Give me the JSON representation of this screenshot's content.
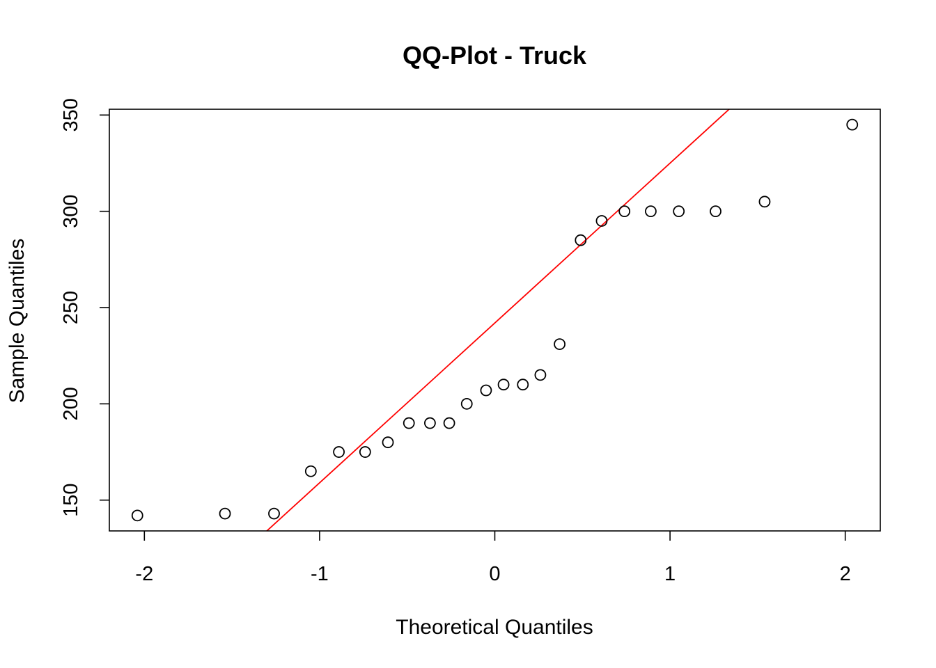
{
  "chart_data": {
    "type": "scatter",
    "title": "QQ-Plot - Truck",
    "xlabel": "Theoretical Quantiles",
    "ylabel": "Sample Quantiles",
    "xlim": [
      -2.2,
      2.2
    ],
    "ylim": [
      134,
      353
    ],
    "xticks": [
      -2,
      -1,
      0,
      1,
      2
    ],
    "xtick_labels": [
      "-2",
      "-1",
      "0",
      "1",
      "2"
    ],
    "yticks": [
      150,
      200,
      250,
      300,
      350
    ],
    "ytick_labels": [
      "150",
      "200",
      "250",
      "300",
      "350"
    ],
    "grid": false,
    "point_color": "#000000",
    "line_color": "#ff0000",
    "series": [
      {
        "type": "scatter",
        "x": [
          -2.04,
          -1.54,
          -1.26,
          -1.05,
          -0.89,
          -0.74,
          -0.61,
          -0.49,
          -0.37,
          -0.26,
          -0.16,
          -0.05,
          0.05,
          0.16,
          0.26,
          0.37,
          0.49,
          0.61,
          0.74,
          0.89,
          1.05,
          1.26,
          1.54,
          2.04
        ],
        "y": [
          142,
          143,
          143,
          165,
          175,
          175,
          180,
          190,
          190,
          190,
          200,
          207,
          210,
          210,
          215,
          231,
          285,
          295,
          300,
          300,
          300,
          300,
          305,
          345
        ]
      }
    ],
    "reference_line": {
      "slope": 83,
      "intercept": 242
    }
  }
}
